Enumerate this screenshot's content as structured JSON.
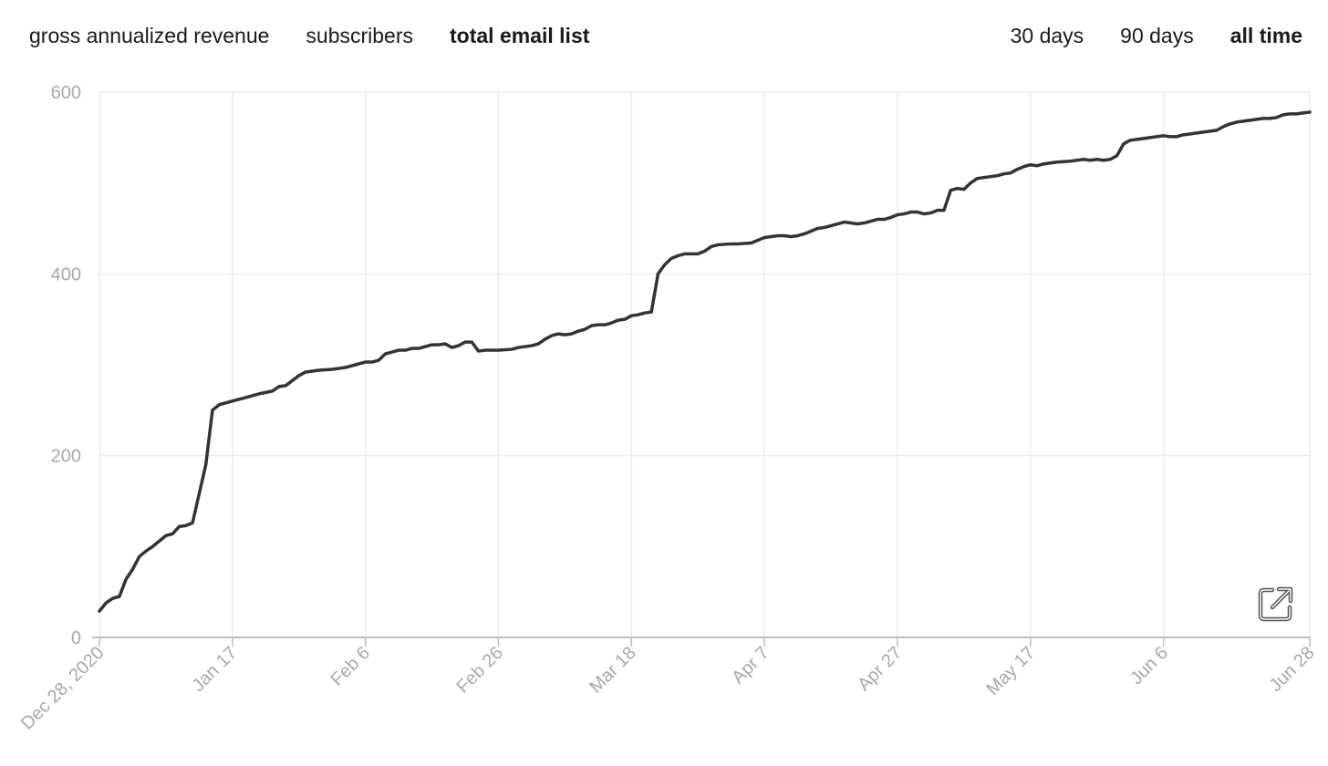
{
  "metric_tabs": [
    {
      "label": "gross annualized revenue",
      "active": false
    },
    {
      "label": "subscribers",
      "active": false
    },
    {
      "label": "total email list",
      "active": true
    }
  ],
  "range_tabs": [
    {
      "label": "30 days",
      "active": false
    },
    {
      "label": "90 days",
      "active": false
    },
    {
      "label": "all time",
      "active": true
    }
  ],
  "expand_icon": "external-link-icon",
  "colors": {
    "line": "#333333",
    "grid": "#ececec",
    "axis": "#bdbdbd",
    "tick_text": "#a8a8a8"
  },
  "chart_data": {
    "type": "line",
    "title": "",
    "xlabel": "",
    "ylabel": "",
    "ylim": [
      0,
      600
    ],
    "y_ticks": [
      0,
      200,
      400,
      600
    ],
    "x_tick_labels": [
      "Dec 28, 2020",
      "Jan 17",
      "Feb 6",
      "Feb 26",
      "Mar 18",
      "Apr 7",
      "Apr 27",
      "May 17",
      "Jun 6",
      "Jun 28"
    ],
    "x_tick_days": [
      0,
      20,
      40,
      60,
      80,
      100,
      120,
      140,
      160,
      182
    ],
    "x_unit": "days since Dec 28, 2020",
    "grid": true,
    "series": [
      {
        "name": "",
        "points": [
          [
            0,
            29
          ],
          [
            1,
            38
          ],
          [
            2,
            43
          ],
          [
            3,
            45
          ],
          [
            4,
            64
          ],
          [
            5,
            75
          ],
          [
            6,
            89
          ],
          [
            7,
            95
          ],
          [
            8,
            100
          ],
          [
            9,
            106
          ],
          [
            10,
            112
          ],
          [
            11,
            114
          ],
          [
            12,
            122
          ],
          [
            13,
            123
          ],
          [
            14,
            126
          ],
          [
            16,
            190
          ],
          [
            17,
            250
          ],
          [
            18,
            256
          ],
          [
            20,
            260
          ],
          [
            22,
            264
          ],
          [
            24,
            268
          ],
          [
            26,
            271
          ],
          [
            27,
            276
          ],
          [
            28,
            277
          ],
          [
            30,
            288
          ],
          [
            31,
            292
          ],
          [
            33,
            294
          ],
          [
            35,
            295
          ],
          [
            37,
            297
          ],
          [
            38,
            299
          ],
          [
            39,
            301
          ],
          [
            40,
            303
          ],
          [
            41,
            303
          ],
          [
            42,
            305
          ],
          [
            43,
            312
          ],
          [
            45,
            316
          ],
          [
            46,
            316
          ],
          [
            47,
            318
          ],
          [
            48,
            318
          ],
          [
            49,
            320
          ],
          [
            50,
            322
          ],
          [
            51,
            322
          ],
          [
            52,
            323
          ],
          [
            53,
            319
          ],
          [
            54,
            321
          ],
          [
            55,
            325
          ],
          [
            56,
            325
          ],
          [
            57,
            315
          ],
          [
            58,
            316
          ],
          [
            60,
            316
          ],
          [
            62,
            317
          ],
          [
            63,
            319
          ],
          [
            65,
            321
          ],
          [
            66,
            323
          ],
          [
            67,
            328
          ],
          [
            68,
            332
          ],
          [
            69,
            334
          ],
          [
            70,
            333
          ],
          [
            71,
            334
          ],
          [
            72,
            337
          ],
          [
            73,
            339
          ],
          [
            74,
            343
          ],
          [
            75,
            344
          ],
          [
            76,
            344
          ],
          [
            77,
            346
          ],
          [
            78,
            349
          ],
          [
            79,
            350
          ],
          [
            80,
            354
          ],
          [
            81,
            355
          ],
          [
            82,
            357
          ],
          [
            83,
            358
          ],
          [
            84,
            400
          ],
          [
            85,
            410
          ],
          [
            86,
            417
          ],
          [
            87,
            420
          ],
          [
            88,
            422
          ],
          [
            90,
            422
          ],
          [
            91,
            425
          ],
          [
            92,
            430
          ],
          [
            93,
            432
          ],
          [
            95,
            433
          ],
          [
            96,
            433
          ],
          [
            98,
            434
          ],
          [
            99,
            437
          ],
          [
            100,
            440
          ],
          [
            102,
            442
          ],
          [
            103,
            442
          ],
          [
            104,
            441
          ],
          [
            105,
            442
          ],
          [
            106,
            444
          ],
          [
            107,
            447
          ],
          [
            108,
            450
          ],
          [
            109,
            451
          ],
          [
            110,
            453
          ],
          [
            111,
            455
          ],
          [
            112,
            457
          ],
          [
            113,
            456
          ],
          [
            114,
            455
          ],
          [
            115,
            456
          ],
          [
            116,
            458
          ],
          [
            117,
            460
          ],
          [
            118,
            460
          ],
          [
            119,
            462
          ],
          [
            120,
            465
          ],
          [
            121,
            466
          ],
          [
            122,
            468
          ],
          [
            123,
            468
          ],
          [
            124,
            466
          ],
          [
            125,
            467
          ],
          [
            126,
            470
          ],
          [
            127,
            470
          ],
          [
            128,
            492
          ],
          [
            129,
            494
          ],
          [
            130,
            493
          ],
          [
            131,
            500
          ],
          [
            132,
            505
          ],
          [
            133,
            506
          ],
          [
            134,
            507
          ],
          [
            135,
            508
          ],
          [
            136,
            510
          ],
          [
            137,
            511
          ],
          [
            138,
            515
          ],
          [
            139,
            518
          ],
          [
            140,
            520
          ],
          [
            141,
            519
          ],
          [
            142,
            521
          ],
          [
            143,
            522
          ],
          [
            144,
            523
          ],
          [
            146,
            524
          ],
          [
            147,
            525
          ],
          [
            148,
            526
          ],
          [
            149,
            525
          ],
          [
            150,
            526
          ],
          [
            151,
            525
          ],
          [
            152,
            526
          ],
          [
            153,
            530
          ],
          [
            154,
            543
          ],
          [
            155,
            547
          ],
          [
            156,
            548
          ],
          [
            157,
            549
          ],
          [
            158,
            550
          ],
          [
            159,
            551
          ],
          [
            160,
            552
          ],
          [
            161,
            551
          ],
          [
            162,
            551
          ],
          [
            163,
            553
          ],
          [
            164,
            554
          ],
          [
            165,
            555
          ],
          [
            166,
            556
          ],
          [
            167,
            557
          ],
          [
            168,
            558
          ],
          [
            169,
            562
          ],
          [
            170,
            565
          ],
          [
            171,
            567
          ],
          [
            172,
            568
          ],
          [
            173,
            569
          ],
          [
            174,
            570
          ],
          [
            175,
            571
          ],
          [
            176,
            571
          ],
          [
            177,
            572
          ],
          [
            178,
            575
          ],
          [
            179,
            576
          ],
          [
            180,
            576
          ],
          [
            181,
            577
          ],
          [
            182,
            578
          ]
        ]
      }
    ]
  }
}
